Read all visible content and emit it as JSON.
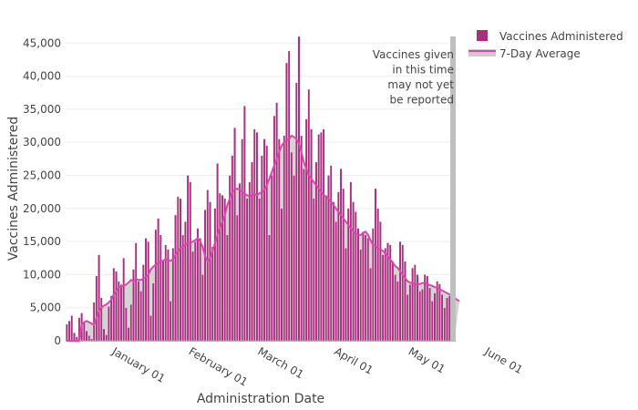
{
  "chart_data": {
    "type": "bar",
    "xlabel": "Administration Date",
    "ylabel": "Vaccines Administered",
    "ylim": [
      0,
      46000
    ],
    "grid": true,
    "legend_position": "top-right",
    "y_ticks": [
      {
        "value": 0,
        "label": "0"
      },
      {
        "value": 5000,
        "label": "5,000"
      },
      {
        "value": 10000,
        "label": "10,000"
      },
      {
        "value": 15000,
        "label": "15,000"
      },
      {
        "value": 20000,
        "label": "20,000"
      },
      {
        "value": 25000,
        "label": "25,000"
      },
      {
        "value": 30000,
        "label": "30,000"
      },
      {
        "value": 35000,
        "label": "35,000"
      },
      {
        "value": 40000,
        "label": "40,000"
      },
      {
        "value": 45000,
        "label": "45,000"
      }
    ],
    "x_ticks": [
      {
        "date": "2021-01-01",
        "label": "January 01"
      },
      {
        "date": "2021-02-01",
        "label": "February 01"
      },
      {
        "date": "2021-03-01",
        "label": "March 01"
      },
      {
        "date": "2021-04-01",
        "label": "April 01"
      },
      {
        "date": "2021-05-01",
        "label": "May 01"
      },
      {
        "date": "2021-06-01",
        "label": "June 01"
      }
    ],
    "x_start": "2020-12-14",
    "series": [
      {
        "name": "Vaccines Administered",
        "kind": "bar",
        "color": "#a8307f",
        "values": [
          2500,
          3000,
          3800,
          1200,
          600,
          3500,
          4200,
          2800,
          1500,
          800,
          300,
          5800,
          9800,
          13000,
          6500,
          1800,
          900,
          5200,
          6800,
          11000,
          10500,
          9000,
          8500,
          12500,
          5000,
          2000,
          5500,
          10800,
          14800,
          9000,
          7500,
          11500,
          15500,
          15000,
          3800,
          8700,
          16800,
          18500,
          16000,
          12000,
          14500,
          13800,
          6000,
          14000,
          19000,
          21800,
          21500,
          16000,
          18000,
          25000,
          24000,
          13500,
          15000,
          17000,
          15500,
          10000,
          19800,
          22800,
          21000,
          14200,
          20000,
          26800,
          22300,
          22000,
          21500,
          16000,
          25000,
          28000,
          32200,
          19000,
          23800,
          30500,
          35500,
          21500,
          24000,
          27000,
          32000,
          31500,
          21500,
          28000,
          30500,
          29500,
          16000,
          25000,
          34000,
          36000,
          30500,
          20000,
          31000,
          42000,
          43800,
          28500,
          25000,
          39000,
          46000,
          31000,
          26000,
          33500,
          38000,
          32000,
          21500,
          27000,
          31200,
          31500,
          32000,
          22000,
          25000,
          26500,
          21000,
          18000,
          22500,
          26000,
          23000,
          14000,
          20000,
          24000,
          21000,
          19500,
          17000,
          13800,
          16500,
          16000,
          15500,
          11000,
          17000,
          23000,
          20000,
          18000,
          13000,
          14000,
          14800,
          14500,
          12000,
          10000,
          9000,
          15000,
          14500,
          12000,
          7000,
          8500,
          11000,
          11500,
          10000,
          7500,
          7800,
          10000,
          9800,
          8000,
          6000,
          7200,
          9000,
          8600,
          7000,
          5000,
          6500,
          6800,
          5800,
          4500
        ]
      },
      {
        "name": "7-Day Average",
        "kind": "area",
        "color": "#dd44b0",
        "fill": "#cccccc",
        "values": [
          0,
          0,
          0,
          0,
          0,
          0,
          2500,
          2800,
          3000,
          2800,
          2600,
          2400,
          3500,
          4500,
          5000,
          5300,
          5500,
          5800,
          6200,
          7000,
          7500,
          8000,
          8200,
          8300,
          8500,
          8800,
          9200,
          9000,
          9300,
          9200,
          9200,
          9400,
          9600,
          10000,
          10800,
          11200,
          11500,
          11800,
          12000,
          12100,
          12300,
          12200,
          12100,
          12300,
          13000,
          13500,
          14000,
          14200,
          14500,
          14800,
          14800,
          15000,
          15200,
          15500,
          15000,
          14200,
          12800,
          12000,
          12500,
          13500,
          14800,
          16000,
          17000,
          18000,
          19000,
          20500,
          21500,
          22500,
          22800,
          23000,
          22800,
          22500,
          22200,
          22000,
          21800,
          22000,
          22200,
          22000,
          22300,
          22500,
          22800,
          23500,
          24500,
          25500,
          26500,
          27500,
          28500,
          29500,
          30000,
          30300,
          30500,
          31000,
          30800,
          30500,
          29800,
          28500,
          27000,
          26000,
          25000,
          24500,
          24000,
          23500,
          23000,
          22500,
          22000,
          21800,
          21500,
          21000,
          20500,
          20000,
          19500,
          19000,
          18500,
          18000,
          17500,
          17000,
          16500,
          16200,
          16000,
          16000,
          16300,
          16500,
          16000,
          15200,
          14500,
          14300,
          14000,
          13800,
          13600,
          13200,
          12800,
          12300,
          11800,
          11300,
          11000,
          10500,
          10000,
          9500,
          9000,
          8800,
          8700,
          8600,
          8500,
          8600,
          8700,
          8800,
          8600,
          8400,
          8300,
          8100,
          8000,
          7800,
          7600,
          7400,
          7200,
          7000,
          6800,
          6500,
          6200,
          6000
        ]
      }
    ],
    "annotation": {
      "lines": [
        "Vaccines given",
        "in this time",
        "may not yet",
        "be reported"
      ],
      "shade_color": "#bfbfbf"
    }
  }
}
